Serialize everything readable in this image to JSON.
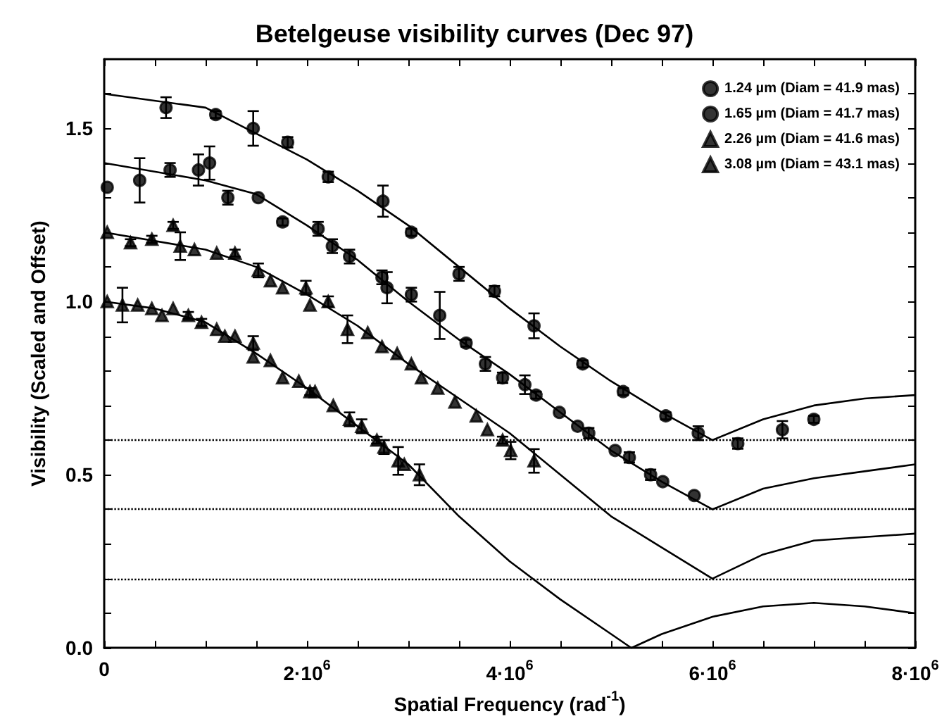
{
  "chart_data": {
    "type": "scatter",
    "title": "Betelgeuse visibility curves (Dec 97)",
    "xlabel": "Spatial Frequency (rad$^{-1}$)",
    "ylabel": "Visibility (Scaled and Offset)",
    "xlim": [
      0,
      8000000
    ],
    "ylim": [
      0,
      1.7
    ],
    "xticks": [
      0,
      {
        "value": 500000,
        "label": null
      },
      {
        "value": 1000000,
        "label": null
      },
      {
        "value": 1500000,
        "label": null
      },
      {
        "value": 2000000,
        "label": "2·10$^{6}$"
      },
      {
        "value": 2500000,
        "label": null
      },
      {
        "value": 3000000,
        "label": null
      },
      {
        "value": 3500000,
        "label": null
      },
      {
        "value": 4000000,
        "label": "4·10$^{6}$"
      },
      {
        "value": 4500000,
        "label": null
      },
      {
        "value": 5000000,
        "label": null
      },
      {
        "value": 5500000,
        "label": null
      },
      {
        "value": 6000000,
        "label": "6·10$^{6}$"
      },
      {
        "value": 6500000,
        "label": null
      },
      {
        "value": 7000000,
        "label": null
      },
      {
        "value": 7500000,
        "label": null
      },
      {
        "value": 8000000,
        "label": "8·10$^{6}$"
      }
    ],
    "yticks": [
      {
        "value": 0,
        "label": "0.0"
      },
      {
        "value": 0.1,
        "label": null
      },
      {
        "value": 0.2,
        "label": null
      },
      {
        "value": 0.3,
        "label": null
      },
      {
        "value": 0.4,
        "label": null
      },
      0.5,
      {
        "value": 0.6,
        "label": null
      },
      {
        "value": 0.7,
        "label": null
      },
      {
        "value": 0.8,
        "label": null
      },
      {
        "value": 0.9,
        "label": null
      },
      {
        "value": 1,
        "label": "1.0"
      },
      {
        "value": 1.1,
        "label": null
      },
      {
        "value": 1.2,
        "label": null
      },
      {
        "value": 1.3,
        "label": null
      },
      {
        "value": 1.4,
        "label": null
      },
      1.5,
      {
        "value": 1.6,
        "label": null
      }
    ],
    "grid": false,
    "legend": "top right",
    "ref_lines": [
      {
        "axis": "y",
        "value": 0.6,
        "color": "#000000",
        "line_style": "dotted"
      },
      {
        "axis": "y",
        "value": 0.4,
        "color": "#000000",
        "line_style": "dotted"
      },
      {
        "axis": "y",
        "value": 0.2,
        "color": "#000000",
        "line_style": "dotted"
      }
    ],
    "series": [
      {
        "name": "1.24 µm (Diam = 41.9 mas)",
        "marker": "circle",
        "color": "#000000",
        "x": [
          610000,
          1100000,
          1470000,
          1810000,
          2210000,
          2750000,
          3030000,
          3500000,
          3850000,
          4240000,
          4720000,
          5120000,
          5540000,
          5860000,
          6250000,
          6690000,
          7000000
        ],
        "values": [
          1.56,
          1.54,
          1.5,
          1.46,
          1.36,
          1.29,
          1.2,
          1.08,
          1.03,
          0.93,
          0.82,
          0.74,
          0.67,
          0.62,
          0.59,
          0.63,
          0.66
        ],
        "errors": [
          0.03,
          0.01,
          0.05,
          0.015,
          0.015,
          0.045,
          0.01,
          0.02,
          0.015,
          0.036,
          0.01,
          0.01,
          0.01,
          0.02,
          0.015,
          0.025,
          0.01
        ]
      },
      {
        "name": "1.65 µm (Diam = 41.7 mas)",
        "marker": "circle",
        "color": "#000000",
        "x": [
          30000,
          350000,
          650000,
          930000,
          1040000,
          1220000,
          1520000,
          1760000,
          2110000,
          2250000,
          2420000,
          2740000,
          2790000,
          3030000,
          3310000,
          3570000,
          3760000,
          3930000,
          4150000,
          4260000,
          4490000,
          4670000,
          4780000,
          5040000,
          5180000,
          5390000,
          5510000,
          5820000
        ],
        "values": [
          1.33,
          1.35,
          1.38,
          1.38,
          1.4,
          1.3,
          1.3,
          1.23,
          1.21,
          1.16,
          1.13,
          1.07,
          1.04,
          1.02,
          0.96,
          0.88,
          0.82,
          0.78,
          0.76,
          0.73,
          0.68,
          0.64,
          0.62,
          0.57,
          0.55,
          0.5,
          0.48,
          0.44
        ],
        "errors": [
          null,
          0.064,
          0.02,
          0.045,
          0.048,
          0.02,
          null,
          0.01,
          0.02,
          0.02,
          0.02,
          0.02,
          0.045,
          0.02,
          0.068,
          0.01,
          0.02,
          0.015,
          0.027,
          0.01,
          null,
          null,
          0.015,
          null,
          0.015,
          0.015,
          null,
          null
        ]
      },
      {
        "name": "2.26 µm (Diam = 41.6 mas)",
        "marker": "triangle",
        "color": "#000000",
        "x": [
          30000,
          260000,
          470000,
          680000,
          750000,
          890000,
          1110000,
          1290000,
          1520000,
          1640000,
          1760000,
          1990000,
          2030000,
          2210000,
          2400000,
          2600000,
          2740000,
          2890000,
          3030000,
          3130000,
          3290000,
          3460000,
          3670000,
          3780000,
          3930000,
          4010000,
          4240000
        ],
        "values": [
          1.2,
          1.17,
          1.18,
          1.22,
          1.16,
          1.15,
          1.14,
          1.14,
          1.09,
          1.06,
          1.04,
          1.04,
          0.99,
          1,
          0.92,
          0.91,
          0.87,
          0.85,
          0.82,
          0.78,
          0.75,
          0.71,
          0.67,
          0.63,
          0.6,
          0.57,
          0.54
        ],
        "errors": [
          null,
          0.01,
          0.01,
          0.01,
          0.04,
          null,
          null,
          0.01,
          0.02,
          null,
          null,
          0.02,
          null,
          0.015,
          0.04,
          null,
          null,
          null,
          null,
          null,
          null,
          null,
          null,
          null,
          0.01,
          0.025,
          0.034
        ]
      },
      {
        "name": "3.08 µm (Diam = 43.1 mas)",
        "marker": "triangle",
        "color": "#000000",
        "x": [
          30000,
          180000,
          330000,
          470000,
          570000,
          680000,
          830000,
          960000,
          1110000,
          1190000,
          1290000,
          1470000,
          1470000,
          1640000,
          1760000,
          1920000,
          2030000,
          2080000,
          2260000,
          2420000,
          2540000,
          2690000,
          2760000,
          2900000,
          2960000,
          3110000
        ],
        "values": [
          1,
          0.99,
          0.99,
          0.98,
          0.96,
          0.98,
          0.96,
          0.94,
          0.92,
          0.9,
          0.9,
          0.88,
          0.84,
          0.83,
          0.78,
          0.77,
          0.74,
          0.74,
          0.7,
          0.66,
          0.64,
          0.6,
          0.58,
          0.54,
          0.53,
          0.5
        ],
        "errors": [
          null,
          0.05,
          null,
          null,
          null,
          null,
          0.01,
          0.01,
          null,
          null,
          null,
          0.02,
          null,
          null,
          null,
          null,
          0.01,
          null,
          null,
          0.02,
          0.02,
          0.01,
          0.02,
          0.04,
          null,
          0.03
        ]
      },
      {
        "type": "line",
        "marker": "none",
        "line_style": "solid",
        "color": "#000000",
        "x": [
          0,
          1000000,
          2000000,
          2500000,
          3000000,
          3500000,
          4000000,
          4500000,
          5000000,
          5500000,
          6000000,
          6500000,
          7000000,
          7500000,
          8000000
        ],
        "values": [
          1.6,
          1.56,
          1.41,
          1.32,
          1.22,
          1.1,
          0.98,
          0.87,
          0.77,
          0.68,
          0.6,
          0.66,
          0.7,
          0.72,
          0.73
        ]
      },
      {
        "type": "line",
        "marker": "none",
        "line_style": "solid",
        "color": "#000000",
        "x": [
          0,
          1000000,
          1500000,
          2000000,
          2500000,
          3000000,
          3500000,
          4000000,
          4500000,
          5000000,
          5500000,
          6000000,
          6500000,
          7000000,
          7500000,
          8000000
        ],
        "values": [
          1.4,
          1.35,
          1.31,
          1.22,
          1.12,
          1,
          0.89,
          0.79,
          0.68,
          0.57,
          0.48,
          0.4,
          0.46,
          0.49,
          0.51,
          0.53
        ]
      },
      {
        "type": "line",
        "marker": "none",
        "line_style": "solid",
        "color": "#000000",
        "x": [
          0,
          1000000,
          1500000,
          2000000,
          2500000,
          3000000,
          3500000,
          4000000,
          4500000,
          5000000,
          5500000,
          6000000,
          6500000,
          7000000,
          7500000,
          8000000
        ],
        "values": [
          1.2,
          1.15,
          1.1,
          1.02,
          0.93,
          0.82,
          0.72,
          0.62,
          0.5,
          0.38,
          0.29,
          0.2,
          0.27,
          0.31,
          0.32,
          0.33
        ]
      },
      {
        "type": "line",
        "marker": "none",
        "line_style": "solid",
        "color": "#000000",
        "x": [
          0,
          500000,
          1000000,
          1500000,
          2000000,
          2500000,
          3000000,
          3500000,
          4000000,
          4500000,
          5000000,
          5200000,
          5500000,
          6000000,
          6500000,
          7000000,
          7500000,
          8000000
        ],
        "values": [
          1,
          0.98,
          0.94,
          0.85,
          0.75,
          0.64,
          0.53,
          0.38,
          0.25,
          0.14,
          0.04,
          0,
          0.04,
          0.09,
          0.12,
          0.13,
          0.12,
          0.1
        ]
      }
    ]
  }
}
